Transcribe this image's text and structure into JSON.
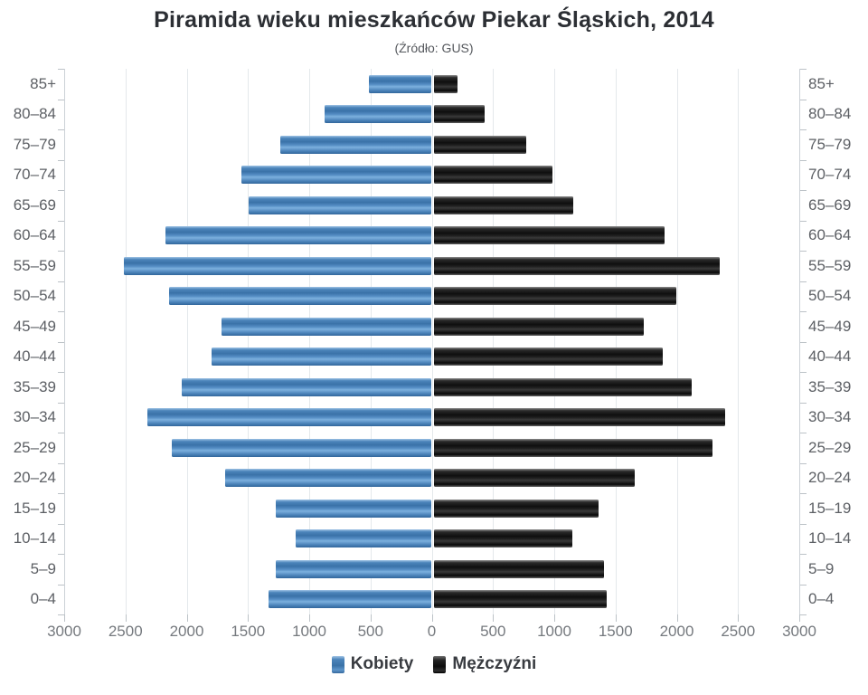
{
  "title": "Piramida wieku mieszkańców Piekar Śląskich, 2014",
  "subtitle": "(Źródło: GUS)",
  "legend": {
    "women": "Kobiety",
    "men": "Mężczyźni"
  },
  "colors": {
    "women_bar": "#4b84ba",
    "men_bar": "#161616",
    "grid": "#e4e8eb",
    "axis": "#ccd1d6",
    "age_label_text": "#5d6065",
    "x_tick_text": "#75797e",
    "title_text": "#2c2f34"
  },
  "chart_data": {
    "type": "bar",
    "variant": "population-pyramid",
    "title": "Piramida wieku mieszkańców Piekar Śląskich, 2014",
    "subtitle": "(Źródło: GUS)",
    "xlabel": "",
    "ylabel": "",
    "grid": "vertical-only",
    "legend_position": "bottom-center",
    "categories": [
      "85+",
      "80–84",
      "75–79",
      "70–74",
      "65–69",
      "60–64",
      "55–59",
      "50–54",
      "45–49",
      "40–44",
      "35–39",
      "30–34",
      "25–29",
      "20–24",
      "15–19",
      "10–14",
      "5–9",
      "0–4"
    ],
    "series": [
      {
        "name": "Kobiety",
        "side": "left",
        "color": "#4b84ba",
        "values": [
          510,
          870,
          1230,
          1550,
          1490,
          2170,
          2510,
          2140,
          1710,
          1790,
          2040,
          2320,
          2120,
          1680,
          1270,
          1110,
          1270,
          1330
        ]
      },
      {
        "name": "Mężczyźni",
        "side": "right",
        "color": "#161616",
        "values": [
          190,
          410,
          750,
          970,
          1140,
          1880,
          2330,
          1980,
          1710,
          1870,
          2100,
          2380,
          2270,
          1640,
          1340,
          1130,
          1390,
          1410
        ]
      }
    ],
    "x_axis": {
      "max": 3000,
      "step": 500,
      "tick_labels": [
        "3000",
        "2500",
        "2000",
        "1500",
        "1000",
        "500",
        "0",
        "500",
        "1000",
        "1500",
        "2000",
        "2500",
        "3000"
      ]
    }
  }
}
